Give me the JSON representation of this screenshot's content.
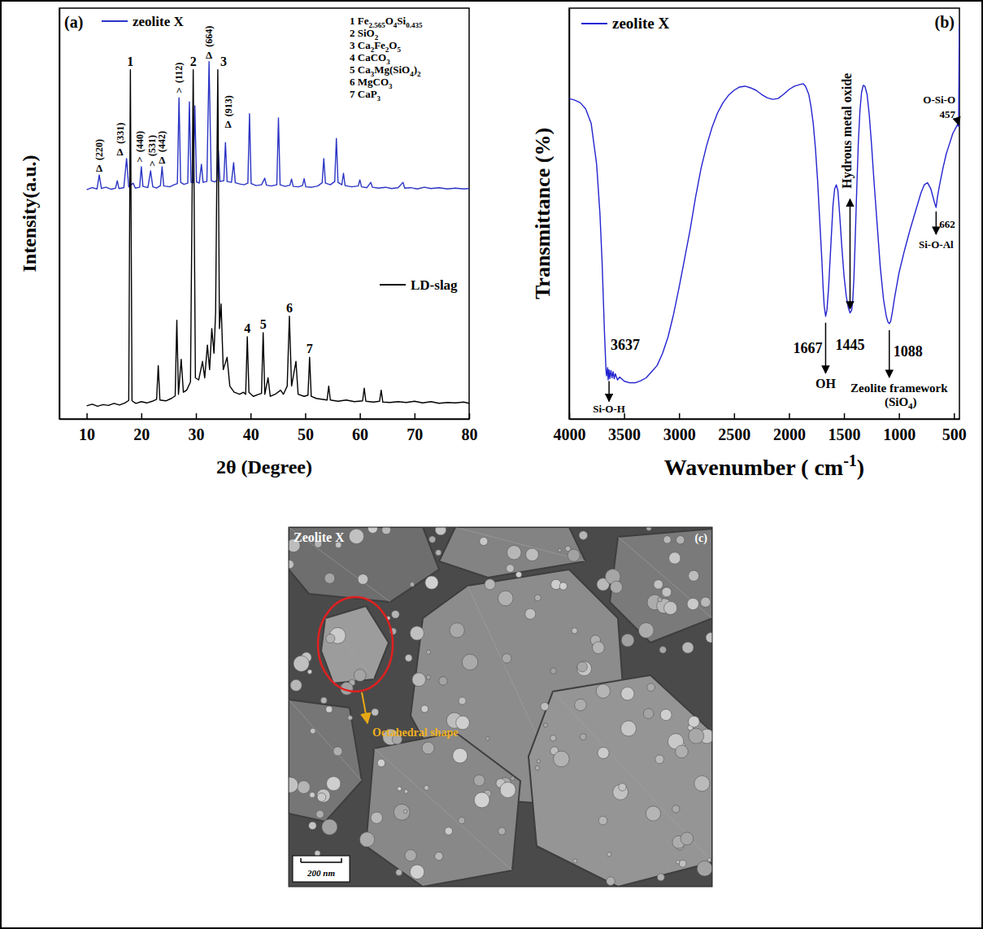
{
  "chart_data": [
    {
      "type": "line",
      "panel": "(a)",
      "x_label": "2θ (Degree)",
      "y_label": "Intensity(a.u.)",
      "xlim": [
        5,
        80
      ],
      "xticks": [
        10,
        20,
        30,
        40,
        50,
        60,
        70,
        80
      ],
      "ylim": [
        0,
        100
      ],
      "tick_labels": "x",
      "series": [
        {
          "name": "zeolite X",
          "color": "#2b35c4",
          "x": [
            10.0,
            11.0,
            11.9,
            12.3,
            12.7,
            13.5,
            14.5,
            15.3,
            15.6,
            15.9,
            16.8,
            17.3,
            17.7,
            18.5,
            18.9,
            19.7,
            20.0,
            20.3,
            21.2,
            21.7,
            22.1,
            22.8,
            23.5,
            23.8,
            24.1,
            25.2,
            26.0,
            26.6,
            26.9,
            27.2,
            27.8,
            28.5,
            28.8,
            29.1,
            29.5,
            29.8,
            30.1,
            30.6,
            31.0,
            31.3,
            32.0,
            32.4,
            32.8,
            33.4,
            33.8,
            34.1,
            34.4,
            35.1,
            35.4,
            35.7,
            36.5,
            36.9,
            37.2,
            38.0,
            38.8,
            39.5,
            39.8,
            40.1,
            41.0,
            42.0,
            42.6,
            42.9,
            43.8,
            44.8,
            45.1,
            45.4,
            46.3,
            47.2,
            47.5,
            47.8,
            48.8,
            49.5,
            49.8,
            50.1,
            51.2,
            52.3,
            53.1,
            53.4,
            53.7,
            54.6,
            55.4,
            55.7,
            56.0,
            56.7,
            57.0,
            57.3,
            58.5,
            59.7,
            60.0,
            60.3,
            61.3,
            62.0,
            62.3,
            63.4,
            64.7,
            65.8,
            67.0,
            67.9,
            68.2,
            69.3,
            70.5,
            71.8,
            73.0,
            74.5,
            76.0,
            77.5,
            79.0,
            80.0
          ],
          "values": [
            55.8,
            56.3,
            56.0,
            59.4,
            56.1,
            56.4,
            55.9,
            56.2,
            58.0,
            56.1,
            56.3,
            63.4,
            56.5,
            57.4,
            56.2,
            56.4,
            61.4,
            56.6,
            56.3,
            60.4,
            56.5,
            56.2,
            56.8,
            61.4,
            56.7,
            56.5,
            57.0,
            57.3,
            78.2,
            57.6,
            57.1,
            57.4,
            77.2,
            57.6,
            57.5,
            76.2,
            57.7,
            57.4,
            62.0,
            57.6,
            57.8,
            87.0,
            58.0,
            57.7,
            58.0,
            65.3,
            57.8,
            58.0,
            67.3,
            57.8,
            57.6,
            62.4,
            57.5,
            57.2,
            57.0,
            57.4,
            74.3,
            57.3,
            56.8,
            57.0,
            58.6,
            56.9,
            56.7,
            57.0,
            73.3,
            57.0,
            56.6,
            56.9,
            58.4,
            56.6,
            56.5,
            56.8,
            58.5,
            56.5,
            56.4,
            56.7,
            57.5,
            63.4,
            57.4,
            57.0,
            57.8,
            68.3,
            57.6,
            57.0,
            59.8,
            56.8,
            56.5,
            56.7,
            58.2,
            56.5,
            56.3,
            57.6,
            56.4,
            56.2,
            56.4,
            56.1,
            56.3,
            57.6,
            56.2,
            56.3,
            56.0,
            56.4,
            56.1,
            56.3,
            56.0,
            56.2,
            56.0,
            56.1
          ]
        },
        {
          "name": "LD-slag",
          "color": "#000000",
          "x": [
            10.0,
            11.0,
            12.0,
            13.0,
            14.0,
            15.0,
            16.0,
            17.0,
            17.7,
            18.0,
            18.3,
            19.0,
            20.0,
            21.0,
            22.0,
            22.8,
            23.1,
            23.4,
            24.5,
            25.5,
            26.2,
            26.5,
            26.8,
            27.3,
            27.7,
            28.3,
            29.0,
            29.5,
            29.9,
            30.5,
            31.2,
            31.6,
            32.1,
            32.5,
            32.9,
            33.3,
            33.6,
            34.0,
            34.3,
            34.6,
            35.0,
            35.7,
            36.2,
            37.0,
            38.0,
            38.7,
            39.1,
            39.4,
            39.7,
            40.5,
            41.5,
            42.0,
            42.3,
            42.6,
            43.2,
            43.6,
            44.5,
            45.5,
            46.0,
            46.7,
            47.1,
            47.5,
            48.3,
            48.7,
            49.8,
            50.5,
            50.8,
            51.1,
            52.0,
            53.0,
            54.0,
            54.3,
            54.6,
            56.0,
            57.5,
            59.0,
            60.5,
            60.8,
            61.1,
            62.5,
            63.6,
            63.9,
            64.2,
            65.5,
            67.0,
            68.5,
            70.0,
            71.5,
            73.0,
            74.5,
            76.0,
            77.5,
            79.0,
            80.0
          ],
          "values": [
            3.2,
            3.6,
            3.1,
            3.5,
            3.3,
            3.8,
            3.4,
            3.9,
            4.5,
            85.0,
            4.4,
            3.8,
            4.2,
            3.9,
            4.3,
            4.8,
            13.0,
            4.6,
            4.4,
            5.0,
            5.6,
            24.0,
            6.0,
            14.5,
            6.5,
            7.0,
            9.0,
            85.0,
            10.0,
            9.5,
            14.0,
            10.0,
            18.0,
            12.0,
            22.0,
            16.0,
            26.0,
            85.0,
            22.0,
            28.0,
            12.0,
            15.0,
            8.0,
            6.5,
            6.0,
            6.5,
            6.0,
            20.0,
            6.5,
            5.5,
            6.0,
            6.2,
            21.0,
            6.0,
            10.0,
            5.5,
            6.0,
            7.0,
            6.0,
            8.0,
            25.0,
            8.0,
            14.0,
            6.0,
            5.5,
            5.8,
            15.0,
            5.5,
            5.0,
            4.8,
            4.6,
            8.0,
            4.6,
            4.3,
            4.6,
            4.2,
            4.4,
            7.5,
            4.3,
            4.1,
            4.3,
            7.0,
            4.1,
            4.0,
            4.2,
            4.0,
            4.3,
            3.9,
            4.2,
            3.8,
            4.0,
            3.9,
            4.1,
            3.8
          ]
        }
      ],
      "phase_key": [
        "1 Fe2.565O4Si0.435",
        "2 SiO2",
        "3 Ca2Fe2O5",
        "4 CaCO3",
        "5 Ca3Mg(SiO4)2",
        "6 MgCO3",
        "7 CaP3"
      ],
      "peak_labels": [
        {
          "x": 18.0,
          "y": 85.0,
          "label": "1"
        },
        {
          "x": 29.5,
          "y": 85.0,
          "label": "2"
        },
        {
          "x": 34.0,
          "y": 85.0,
          "label": "3"
        },
        {
          "x": 39.4,
          "y": 20.0,
          "label": "4"
        },
        {
          "x": 42.3,
          "y": 21.0,
          "label": "5"
        },
        {
          "x": 47.1,
          "y": 25.0,
          "label": "6"
        },
        {
          "x": 50.8,
          "y": 15.0,
          "label": "7"
        }
      ],
      "hkl_annotations": [
        {
          "x": 12.3,
          "y": 59.4,
          "label": "(220)",
          "symbol": "Δ"
        },
        {
          "x": 17.3,
          "y": 63.4,
          "label": "(331)",
          "symbol": "Δ"
        },
        {
          "x": 20.0,
          "y": 61.4,
          "label": "(440)",
          "symbol": "^"
        },
        {
          "x": 21.7,
          "y": 60.4,
          "label": "(531)",
          "symbol": "^"
        },
        {
          "x": 23.8,
          "y": 61.4,
          "label": "(442)",
          "symbol": "Δ"
        },
        {
          "x": 26.9,
          "y": 78.2,
          "label": "(112)",
          "symbol": "^"
        },
        {
          "x": 32.4,
          "y": 87.0,
          "label": "(664)",
          "symbol": "Δ"
        },
        {
          "x": 34.1,
          "y": 65.3,
          "label": "(913)",
          "symbol": "Δ"
        }
      ]
    },
    {
      "type": "line",
      "panel": "(b)",
      "x_label": "Wavenumber ( cm-1)",
      "y_label": "Transmittance (%)",
      "xlim": [
        4000,
        450
      ],
      "xticks": [
        4000,
        3500,
        3000,
        2500,
        2000,
        1500,
        1000,
        500
      ],
      "ylim": [
        0,
        100
      ],
      "tick_labels": "x",
      "series": [
        {
          "name": "zeolite X",
          "color": "#2424d0",
          "x": [
            4000,
            3950,
            3900,
            3850,
            3800,
            3750,
            3720,
            3700,
            3680,
            3665,
            3660,
            3650,
            3645,
            3637,
            3630,
            3620,
            3610,
            3600,
            3590,
            3580,
            3560,
            3540,
            3500,
            3450,
            3400,
            3350,
            3300,
            3250,
            3200,
            3150,
            3100,
            3050,
            3000,
            2950,
            2900,
            2850,
            2800,
            2750,
            2700,
            2650,
            2600,
            2550,
            2500,
            2450,
            2400,
            2350,
            2300,
            2250,
            2200,
            2150,
            2100,
            2050,
            2000,
            1950,
            1900,
            1870,
            1850,
            1820,
            1800,
            1780,
            1760,
            1740,
            1720,
            1700,
            1690,
            1680,
            1667,
            1655,
            1640,
            1620,
            1600,
            1585,
            1570,
            1555,
            1540,
            1520,
            1500,
            1480,
            1460,
            1445,
            1430,
            1420,
            1410,
            1400,
            1385,
            1370,
            1355,
            1340,
            1325,
            1310,
            1290,
            1270,
            1250,
            1230,
            1200,
            1170,
            1140,
            1115,
            1100,
            1088,
            1075,
            1060,
            1040,
            1000,
            950,
            900,
            850,
            800,
            770,
            740,
            710,
            690,
            675,
            662,
            650,
            630,
            600,
            570,
            540,
            510,
            480,
            465,
            457,
            455,
            452,
            450
          ],
          "values": [
            78.0,
            77.6,
            77.0,
            75.5,
            72.0,
            62.0,
            50.0,
            38.0,
            22.0,
            12.0,
            10.5,
            12.5,
            9.5,
            12.0,
            9.8,
            11.8,
            10.0,
            11.5,
            9.8,
            11.0,
            9.5,
            10.2,
            9.2,
            8.8,
            8.8,
            9.3,
            10.0,
            11.5,
            13.0,
            16.0,
            20.0,
            25.5,
            32.0,
            39.0,
            46.0,
            54.0,
            61.0,
            66.5,
            71.0,
            74.5,
            77.0,
            78.8,
            80.0,
            80.8,
            81.0,
            80.6,
            80.0,
            79.0,
            78.2,
            77.8,
            78.0,
            79.0,
            80.2,
            81.0,
            81.4,
            81.6,
            81.0,
            79.0,
            76.0,
            72.0,
            66.0,
            58.0,
            48.0,
            38.0,
            32.0,
            27.5,
            25.0,
            26.5,
            32.0,
            42.0,
            52.0,
            56.0,
            57.0,
            55.5,
            50.0,
            42.0,
            35.0,
            30.0,
            27.0,
            25.8,
            26.5,
            29.0,
            34.0,
            42.0,
            55.0,
            67.0,
            75.0,
            79.5,
            81.2,
            81.0,
            79.0,
            74.0,
            67.0,
            59.0,
            48.0,
            37.0,
            29.0,
            25.0,
            23.6,
            23.2,
            23.8,
            26.0,
            29.5,
            35.5,
            41.0,
            46.0,
            50.5,
            55.0,
            57.0,
            57.5,
            56.0,
            54.0,
            52.5,
            51.5,
            54.0,
            57.0,
            61.0,
            64.5,
            67.0,
            69.5,
            71.0,
            71.8,
            71.2,
            80.0,
            92.0,
            96.0
          ]
        }
      ],
      "annotations": [
        {
          "x": 3637,
          "y": 12.0,
          "label": "3637",
          "assignment": "Si-O-H"
        },
        {
          "x": 1667,
          "y": 25.0,
          "label": "1667",
          "assignment": "OH"
        },
        {
          "x": 1445,
          "y": 25.8,
          "label": "1445",
          "assignment": "Hydrous metal oxide"
        },
        {
          "x": 1088,
          "y": 23.2,
          "label": "1088",
          "assignment": "Zeolite framework (SiO4)"
        },
        {
          "x": 662,
          "y": 51.5,
          "label": "662",
          "assignment": "Si-O-Al"
        },
        {
          "x": 457,
          "y": 71.2,
          "label": "457",
          "assignment": "O-Si-O"
        }
      ]
    }
  ],
  "micrograph": {
    "panel": "(c)",
    "title": "Zeolite X",
    "annotation": "Octahedral shape",
    "scale_bar": "200 nm"
  }
}
